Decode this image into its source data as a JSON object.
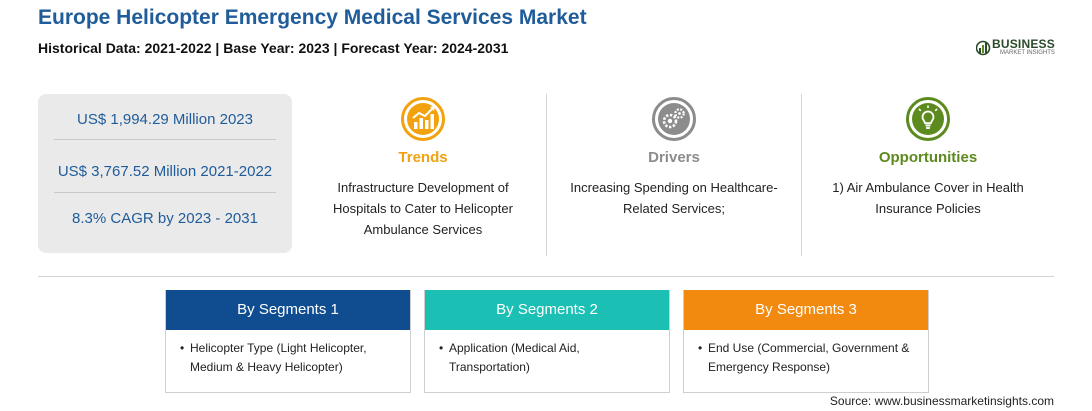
{
  "header": {
    "title": "Europe Helicopter Emergency Medical Services Market",
    "subtitle": "Historical Data: 2021-2022 | Base Year: 2023 | Forecast Year: 2024-2031"
  },
  "logo": {
    "word": "BUSINESS",
    "sub": "MARKET INSIGHTS",
    "icon": "bar-chart-logo-icon"
  },
  "stats": [
    "US$ 1,994.29 Million 2023",
    "US$ 3,767.52 Million 2021-2022",
    "8.3% CAGR by 2023 - 2031"
  ],
  "columns": {
    "trends": {
      "heading": "Trends",
      "text": "Infrastructure Development of Hospitals to Cater to Helicopter Ambulance Services",
      "icon": "growth-chart-icon",
      "color": "#f2a20f"
    },
    "drivers": {
      "heading": "Drivers",
      "text": "Increasing Spending on Healthcare-Related Services;",
      "icon": "gears-icon",
      "color": "#8c8c8c"
    },
    "opportunities": {
      "heading": "Opportunities",
      "text": "1) Air Ambulance Cover in Health Insurance Policies",
      "icon": "lightbulb-icon",
      "color": "#5c8a1e"
    }
  },
  "segments": [
    {
      "heading": "By Segments 1",
      "bullet": "•",
      "item": "Helicopter Type (Light Helicopter, Medium & Heavy Helicopter)",
      "color": "#0f4d90"
    },
    {
      "heading": "By Segments 2",
      "bullet": "•",
      "item": "Application (Medical Aid, Transportation)",
      "color": "#1bbfb4"
    },
    {
      "heading": "By Segments 3",
      "bullet": "•",
      "item": "End Use (Commercial, Government & Emergency Response)",
      "color": "#f28a0f"
    }
  ],
  "source": "Source: www.businessmarketinsights.com"
}
